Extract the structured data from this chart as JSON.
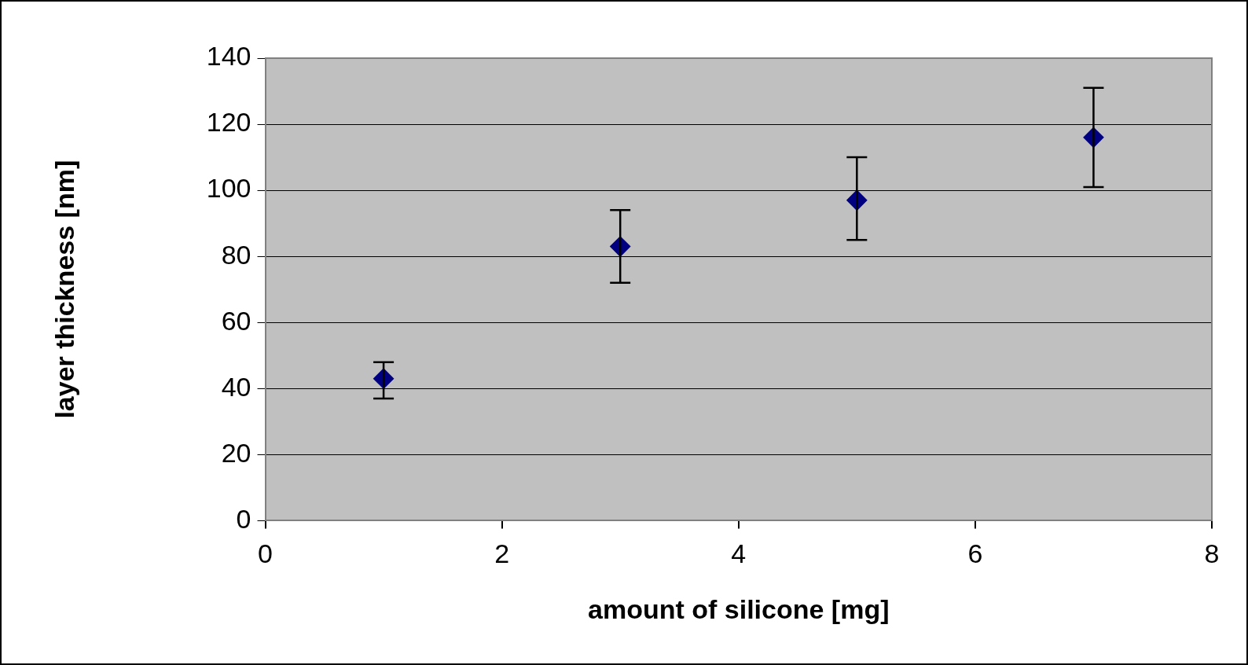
{
  "chart_data": {
    "type": "scatter",
    "xlabel": "amount of silicone [mg]",
    "ylabel": "layer thickness [nm]",
    "x": [
      1,
      3,
      5,
      7
    ],
    "series": [
      {
        "color": "#000080",
        "values": [
          43,
          83,
          97,
          116
        ],
        "errors": [
          [
            37,
            48
          ],
          [
            72,
            94
          ],
          [
            85,
            110
          ],
          [
            101,
            131
          ]
        ]
      }
    ],
    "xlim": [
      0,
      8
    ],
    "xticks": [
      0,
      2,
      4,
      6,
      8
    ],
    "ylim": [
      0,
      140
    ],
    "yticks": [
      0,
      20,
      40,
      60,
      80,
      100,
      120,
      140
    ],
    "grid": "y",
    "legend": false,
    "marker": "diamond"
  }
}
